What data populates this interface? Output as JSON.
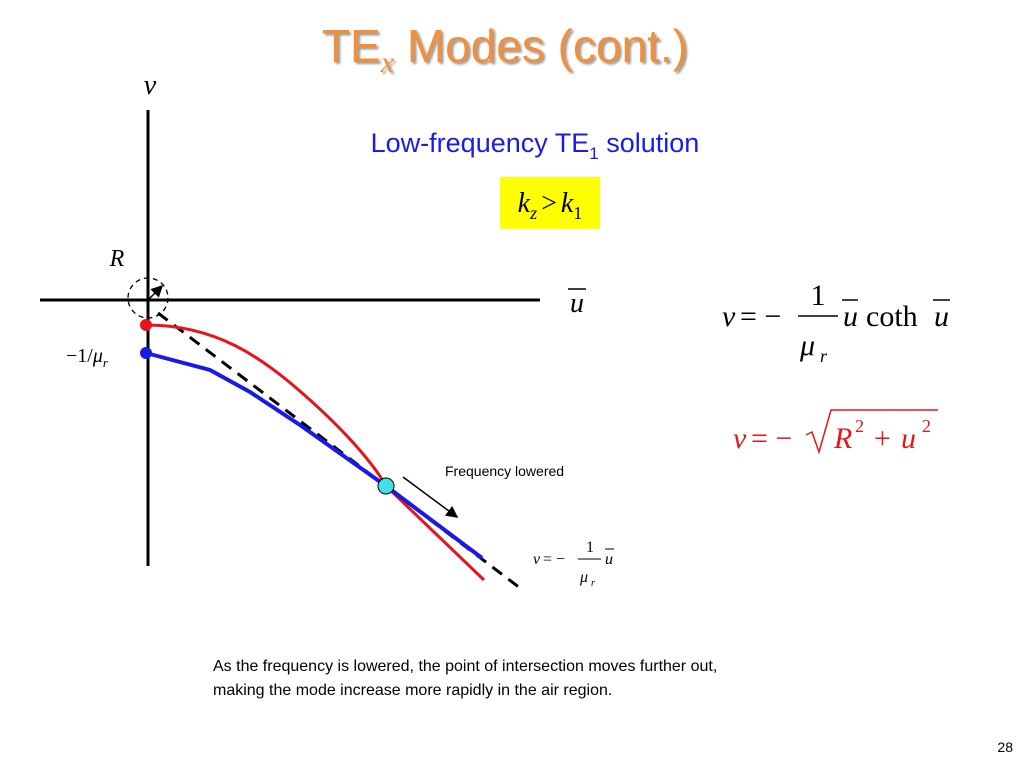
{
  "title": {
    "main": "TE",
    "sub": "x",
    "rest": " Modes (cont.)"
  },
  "subtitle": {
    "main": "Low-frequency TE",
    "sub": "1",
    "rest": " solution"
  },
  "condition": [
    "k",
    "z",
    ">",
    "k",
    "1"
  ],
  "axes": {
    "v": "v",
    "u": "u",
    "R": "R",
    "intercept": [
      "−1/",
      "μ",
      "r"
    ]
  },
  "annotation": "Frequency lowered",
  "equation1": [
    "v",
    "= −",
    "1",
    "μ",
    "r",
    "u",
    "coth",
    "u"
  ],
  "equation2": [
    "v",
    "= −",
    "R",
    "2",
    "+",
    "u",
    "2"
  ],
  "equation3": [
    "v",
    "= −",
    "1",
    "μ",
    "r",
    "u"
  ],
  "caption": [
    "As the frequency is lowered, the point of intersection moves further out,",
    "making the mode increase more rapidly in the air region."
  ],
  "page_number": "28"
}
